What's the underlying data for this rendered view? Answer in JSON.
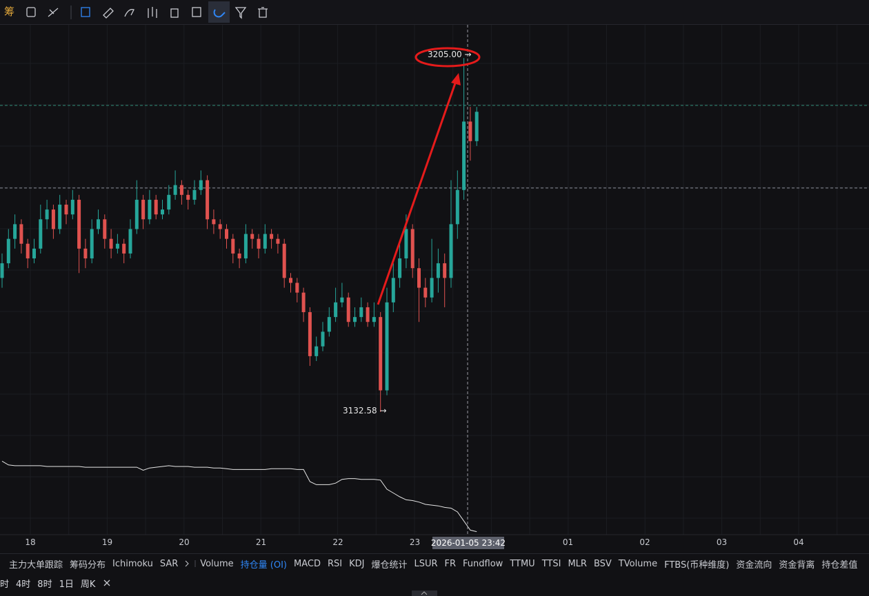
{
  "toolbar": {
    "label": "筹"
  },
  "chart": {
    "max_label": "3205.00 →",
    "min_label": "3132.58 →",
    "crosshair_label": "2026-01-05 23:42",
    "x_labels": [
      "18",
      "19",
      "20",
      "21",
      "22",
      "23",
      "01",
      "02",
      "03",
      "04"
    ],
    "price_range": [
      3126.5,
      3211.8
    ],
    "levels": [
      {
        "value": 3195.3,
        "color": "#2e8b75"
      },
      {
        "value": 3178.4,
        "color": "#8a8d96"
      }
    ],
    "up_color": "#26a69a",
    "down_color": "#e0524f",
    "candles": [
      [
        3160,
        3165,
        3158,
        3163
      ],
      [
        3163,
        3170,
        3162,
        3168
      ],
      [
        3168,
        3173,
        3166,
        3171
      ],
      [
        3171,
        3172,
        3165,
        3167
      ],
      [
        3167,
        3168,
        3162,
        3164
      ],
      [
        3164,
        3168,
        3163,
        3166
      ],
      [
        3166,
        3175,
        3165,
        3172
      ],
      [
        3172,
        3176,
        3170,
        3174
      ],
      [
        3174,
        3175,
        3168,
        3170
      ],
      [
        3170,
        3177,
        3169,
        3175
      ],
      [
        3175,
        3176,
        3171,
        3173
      ],
      [
        3173,
        3178,
        3172,
        3176
      ],
      [
        3176,
        3177,
        3161,
        3166
      ],
      [
        3166,
        3168,
        3162,
        3164
      ],
      [
        3164,
        3172,
        3163,
        3170
      ],
      [
        3170,
        3174,
        3169,
        3172
      ],
      [
        3172,
        3173,
        3166,
        3168
      ],
      [
        3168,
        3170,
        3164,
        3166
      ],
      [
        3166,
        3169,
        3165,
        3167
      ],
      [
        3167,
        3168,
        3163,
        3165
      ],
      [
        3165,
        3172,
        3164,
        3170
      ],
      [
        3170,
        3180,
        3169,
        3176
      ],
      [
        3176,
        3177,
        3170,
        3172
      ],
      [
        3172,
        3178,
        3171,
        3176
      ],
      [
        3176,
        3177,
        3172,
        3173
      ],
      [
        3173,
        3176,
        3172,
        3174
      ],
      [
        3174,
        3179,
        3173,
        3177
      ],
      [
        3177,
        3182,
        3176,
        3179
      ],
      [
        3179,
        3180,
        3175,
        3177
      ],
      [
        3177,
        3178,
        3174,
        3176
      ],
      [
        3176,
        3180,
        3175,
        3178
      ],
      [
        3178,
        3182,
        3177,
        3180
      ],
      [
        3180,
        3181,
        3170,
        3172
      ],
      [
        3172,
        3174,
        3169,
        3171
      ],
      [
        3171,
        3172,
        3168,
        3170
      ],
      [
        3170,
        3171,
        3166,
        3168
      ],
      [
        3168,
        3169,
        3163,
        3165
      ],
      [
        3165,
        3166,
        3162,
        3164
      ],
      [
        3164,
        3171,
        3163,
        3169
      ],
      [
        3169,
        3170,
        3166,
        3168
      ],
      [
        3168,
        3169,
        3164,
        3166
      ],
      [
        3166,
        3171,
        3165,
        3169
      ],
      [
        3169,
        3170,
        3166,
        3168
      ],
      [
        3168,
        3169,
        3165,
        3167
      ],
      [
        3167,
        3168,
        3158,
        3160
      ],
      [
        3160,
        3161,
        3157,
        3159
      ],
      [
        3159,
        3160,
        3155,
        3157
      ],
      [
        3157,
        3158,
        3151,
        3153
      ],
      [
        3153,
        3154,
        3142,
        3144
      ],
      [
        3144,
        3148,
        3143,
        3146
      ],
      [
        3146,
        3151,
        3145,
        3149
      ],
      [
        3149,
        3154,
        3148,
        3152
      ],
      [
        3152,
        3158,
        3151,
        3155
      ],
      [
        3155,
        3159,
        3154,
        3156
      ],
      [
        3156,
        3157,
        3150,
        3151
      ],
      [
        3151,
        3154,
        3150,
        3152
      ],
      [
        3152,
        3156,
        3151,
        3154
      ],
      [
        3154,
        3155,
        3150,
        3151
      ],
      [
        3151,
        3155,
        3150,
        3152
      ],
      [
        3152,
        3153,
        3132.58,
        3137
      ],
      [
        3137,
        3158,
        3136,
        3155
      ],
      [
        3155,
        3163,
        3153,
        3160
      ],
      [
        3160,
        3167,
        3158,
        3164
      ],
      [
        3164,
        3173,
        3162,
        3170
      ],
      [
        3170,
        3171,
        3160,
        3162
      ],
      [
        3162,
        3164,
        3151,
        3158
      ],
      [
        3158,
        3160,
        3154,
        3156
      ],
      [
        3156,
        3168,
        3155,
        3160
      ],
      [
        3160,
        3166,
        3157,
        3163
      ],
      [
        3163,
        3165,
        3154,
        3160
      ],
      [
        3160,
        3180,
        3158,
        3171
      ],
      [
        3171,
        3182,
        3168,
        3178
      ],
      [
        3178,
        3205,
        3176,
        3192
      ],
      [
        3192,
        3195,
        3184,
        3188
      ],
      [
        3188,
        3195,
        3187,
        3194
      ]
    ],
    "oi": {
      "range": [
        0,
        100
      ],
      "color": "#e6e6e6",
      "values": [
        97,
        92,
        91,
        91,
        91,
        91,
        91,
        90,
        90,
        90,
        90,
        90,
        90,
        89,
        89,
        89,
        89,
        89,
        89,
        89,
        89,
        89,
        85,
        88,
        89,
        90,
        91,
        90,
        90,
        90,
        89,
        89,
        89,
        88,
        88,
        87,
        86,
        86,
        86,
        86,
        86,
        86,
        87,
        87,
        87,
        87,
        86,
        86,
        70,
        66,
        66,
        66,
        68,
        73,
        74,
        74,
        73,
        73,
        73,
        72,
        60,
        55,
        50,
        46,
        45,
        43,
        40,
        39,
        38,
        36,
        35,
        30,
        18,
        6,
        4
      ]
    }
  },
  "indicator_tabs": [
    "主力大单跟踪",
    "筹码分布",
    "Ichimoku",
    "SAR",
    "Volume",
    "持仓量 (OI)",
    "MACD",
    "RSI",
    "KDJ",
    "爆仓统计",
    "LSUR",
    "FR",
    "Fundflow",
    "TTMU",
    "TTSI",
    "MLR",
    "BSV",
    "TVolume",
    "FTBS(币种维度)",
    "资金流向",
    "资金背离",
    "持仓差值"
  ],
  "active_tab": 5,
  "timeframes": [
    "时",
    "4时",
    "8时",
    "1日",
    "周K"
  ]
}
